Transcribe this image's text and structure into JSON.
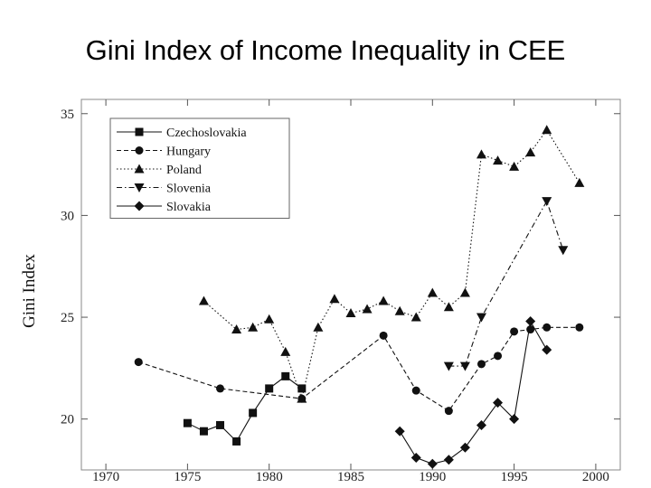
{
  "slide": {
    "title": "Gini Index of Income Inequality in CEE"
  },
  "chart_data": {
    "type": "line",
    "title": "Gini Index of Income Inequality in CEE",
    "xlabel": "",
    "ylabel": "Gini Index",
    "xlim": [
      1968.5,
      2001.5
    ],
    "ylim": [
      17.5,
      35.7
    ],
    "x_ticks": [
      1970,
      1975,
      1980,
      1985,
      1990,
      1995,
      2000
    ],
    "y_ticks": [
      20,
      25,
      30,
      35
    ],
    "legend_position": "top-left",
    "grid": false,
    "series": [
      {
        "name": "Czechoslovakia",
        "marker": "square",
        "line_style": "solid",
        "points": [
          [
            1975,
            19.8
          ],
          [
            1976,
            19.4
          ],
          [
            1977,
            19.7
          ],
          [
            1978,
            18.9
          ],
          [
            1979,
            20.3
          ],
          [
            1980,
            21.5
          ],
          [
            1981,
            22.1
          ],
          [
            1982,
            21.5
          ]
        ]
      },
      {
        "name": "Hungary",
        "marker": "circle",
        "line_style": "dashed",
        "points": [
          [
            1972,
            22.8
          ],
          [
            1977,
            21.5
          ],
          [
            1982,
            21.0
          ],
          [
            1987,
            24.1
          ],
          [
            1989,
            21.4
          ],
          [
            1991,
            20.4
          ],
          [
            1993,
            22.7
          ],
          [
            1994,
            23.1
          ],
          [
            1995,
            24.3
          ],
          [
            1996,
            24.4
          ],
          [
            1997,
            24.5
          ],
          [
            1999,
            24.5
          ]
        ]
      },
      {
        "name": "Poland",
        "marker": "triangle-up",
        "line_style": "dotted",
        "points": [
          [
            1976,
            25.8
          ],
          [
            1978,
            24.4
          ],
          [
            1979,
            24.5
          ],
          [
            1980,
            24.9
          ],
          [
            1981,
            23.3
          ],
          [
            1982,
            21.0
          ],
          [
            1983,
            24.5
          ],
          [
            1984,
            25.9
          ],
          [
            1985,
            25.2
          ],
          [
            1986,
            25.4
          ],
          [
            1987,
            25.8
          ],
          [
            1988,
            25.3
          ],
          [
            1989,
            25.0
          ],
          [
            1990,
            26.2
          ],
          [
            1991,
            25.5
          ],
          [
            1992,
            26.2
          ],
          [
            1993,
            33.0
          ],
          [
            1994,
            32.7
          ],
          [
            1995,
            32.4
          ],
          [
            1996,
            33.1
          ],
          [
            1997,
            34.2
          ],
          [
            1999,
            31.6
          ]
        ]
      },
      {
        "name": "Slovenia",
        "marker": "triangle-down",
        "line_style": "dash-dot",
        "points": [
          [
            1991,
            22.6
          ],
          [
            1992,
            22.6
          ],
          [
            1993,
            25.0
          ],
          [
            1997,
            30.7
          ],
          [
            1998,
            28.3
          ]
        ]
      },
      {
        "name": "Slovakia",
        "marker": "diamond",
        "line_style": "solid",
        "points": [
          [
            1988,
            19.4
          ],
          [
            1989,
            18.1
          ],
          [
            1990,
            17.8
          ],
          [
            1991,
            18.0
          ],
          [
            1992,
            18.6
          ],
          [
            1993,
            19.7
          ],
          [
            1994,
            20.8
          ],
          [
            1995,
            20.0
          ],
          [
            1996,
            24.8
          ],
          [
            1997,
            23.4
          ]
        ]
      }
    ]
  },
  "colors": {
    "ink": "#111111",
    "frame": "#888888",
    "legend_border": "#666666"
  }
}
